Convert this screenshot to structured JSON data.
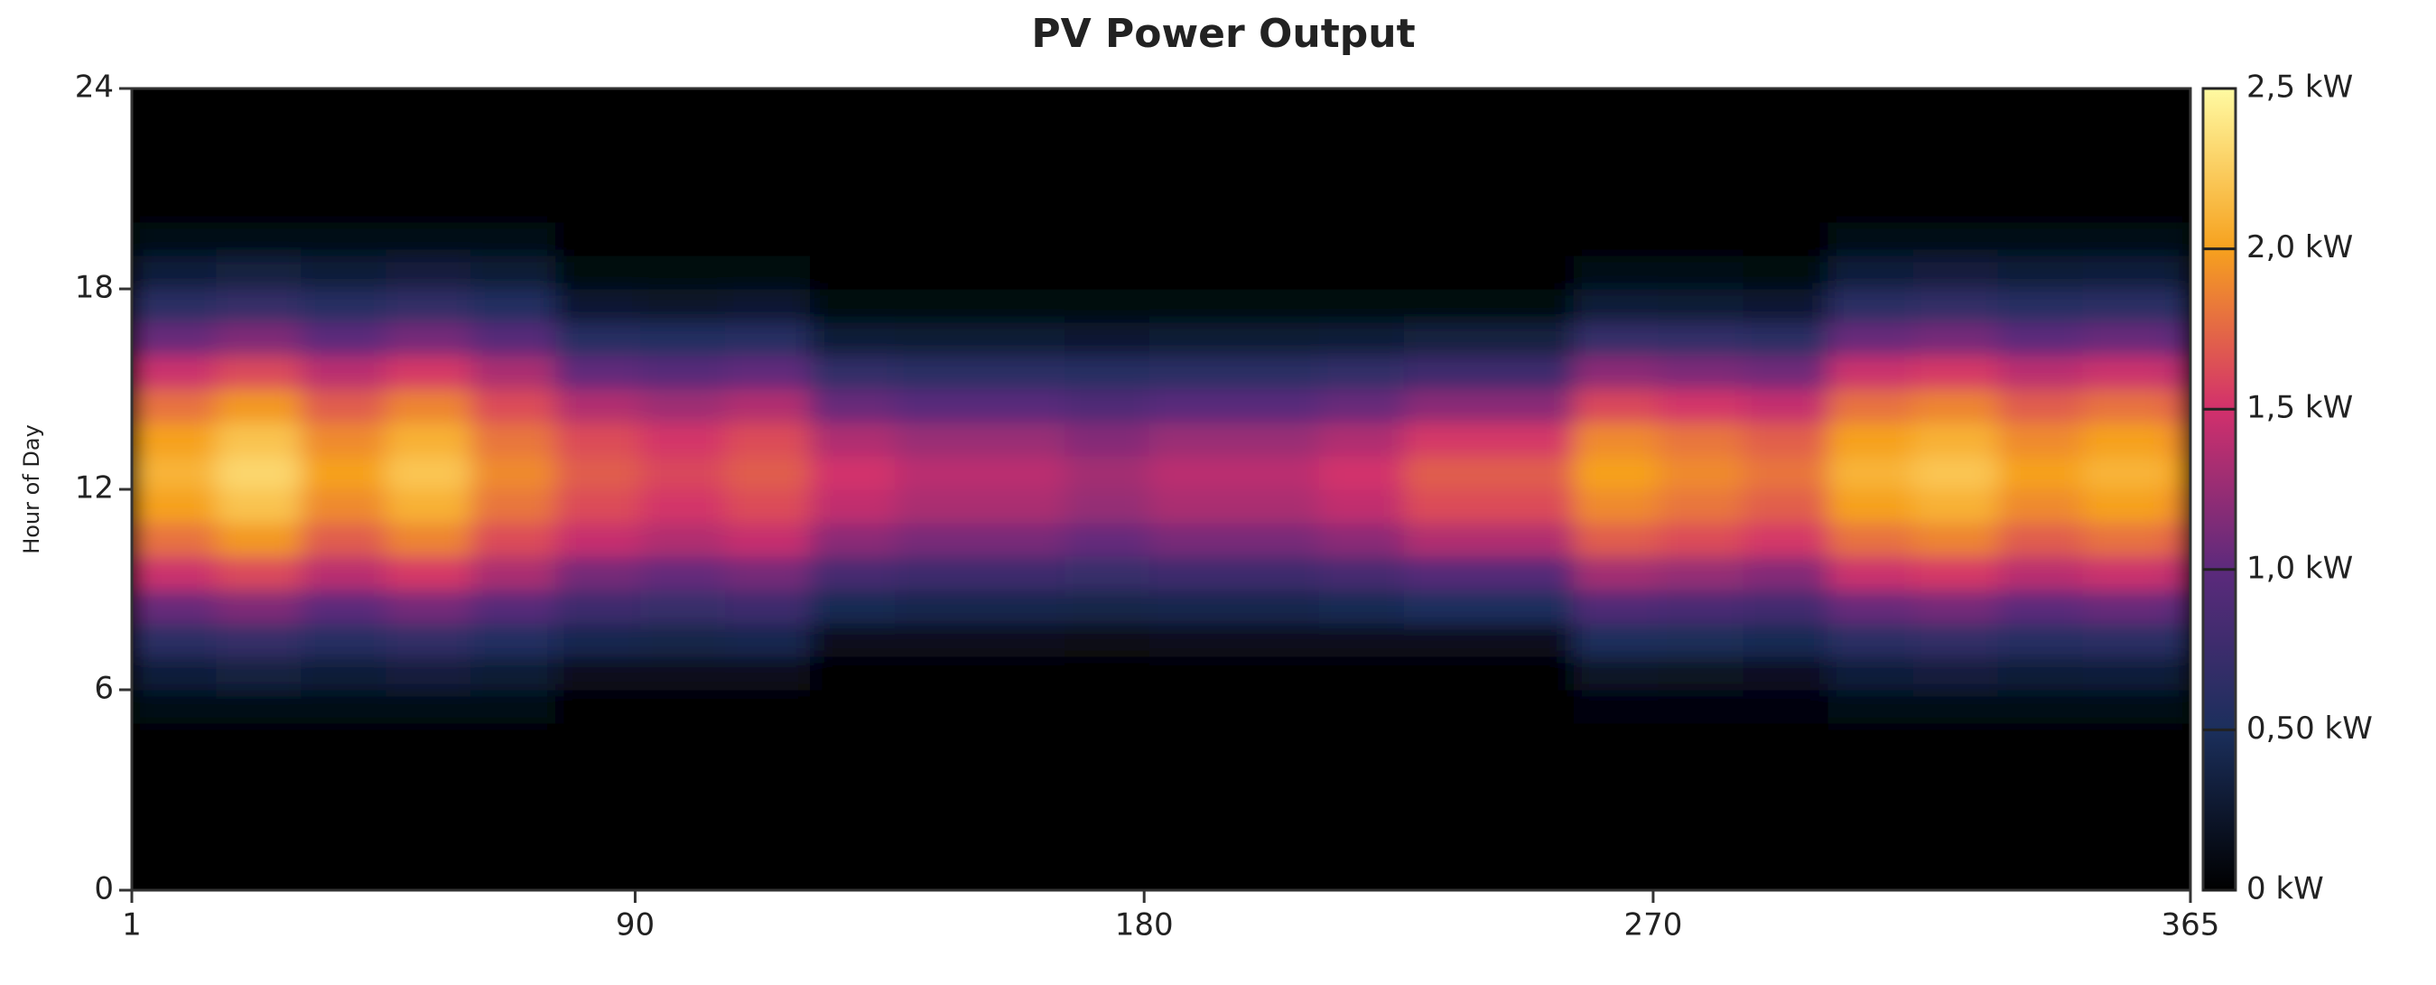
{
  "chart_data": {
    "type": "heatmap",
    "title": "PV Power Output",
    "y_label": "Hour of Day",
    "x": [
      1,
      16,
      31,
      46,
      61,
      76,
      91,
      106,
      121,
      136,
      151,
      166,
      181,
      196,
      211,
      226,
      241,
      256,
      271,
      286,
      301,
      316,
      331,
      346,
      361
    ],
    "y": [
      0,
      1,
      2,
      3,
      4,
      5,
      6,
      7,
      8,
      9,
      10,
      11,
      12,
      13,
      14,
      15,
      16,
      17,
      18,
      19,
      20,
      21,
      22,
      23
    ],
    "values": [
      [
        0,
        0,
        0,
        0,
        0,
        0.11,
        0.32,
        0.63,
        1.05,
        1.47,
        1.79,
        2.0,
        2.1,
        2.0,
        1.79,
        1.47,
        1.05,
        0.63,
        0.32,
        0.11,
        0,
        0,
        0,
        0
      ],
      [
        0,
        0,
        0,
        0,
        0,
        0.12,
        0.35,
        0.69,
        1.15,
        1.61,
        1.96,
        2.19,
        2.3,
        2.19,
        1.96,
        1.61,
        1.15,
        0.69,
        0.35,
        0.12,
        0,
        0,
        0,
        0
      ],
      [
        0,
        0,
        0,
        0,
        0,
        0.1,
        0.3,
        0.6,
        1.0,
        1.4,
        1.7,
        1.9,
        2.0,
        1.9,
        1.7,
        1.4,
        1.0,
        0.6,
        0.3,
        0.1,
        0,
        0,
        0,
        0
      ],
      [
        0,
        0,
        0,
        0,
        0,
        0.11,
        0.33,
        0.66,
        1.1,
        1.54,
        1.87,
        2.09,
        2.2,
        2.09,
        1.87,
        1.54,
        1.1,
        0.66,
        0.33,
        0.11,
        0,
        0,
        0,
        0
      ],
      [
        0,
        0,
        0,
        0,
        0,
        0.1,
        0.29,
        0.57,
        0.95,
        1.33,
        1.62,
        1.81,
        1.9,
        1.81,
        1.62,
        1.33,
        0.95,
        0.57,
        0.29,
        0.1,
        0,
        0,
        0,
        0
      ],
      [
        0,
        0,
        0,
        0,
        0,
        0.03,
        0.17,
        0.43,
        0.77,
        1.11,
        1.45,
        1.62,
        1.7,
        1.62,
        1.36,
        1.02,
        0.6,
        0.26,
        0.09,
        0,
        0,
        0,
        0,
        0
      ],
      [
        0,
        0,
        0,
        0,
        0,
        0.03,
        0.16,
        0.4,
        0.72,
        1.04,
        1.36,
        1.52,
        1.6,
        1.52,
        1.28,
        0.96,
        0.56,
        0.24,
        0.08,
        0,
        0,
        0,
        0,
        0
      ],
      [
        0,
        0,
        0,
        0,
        0,
        0.03,
        0.17,
        0.43,
        0.77,
        1.11,
        1.45,
        1.62,
        1.7,
        1.62,
        1.36,
        1.02,
        0.6,
        0.26,
        0.09,
        0,
        0,
        0,
        0,
        0
      ],
      [
        0,
        0,
        0,
        0,
        0,
        0,
        0.03,
        0.15,
        0.45,
        0.83,
        1.2,
        1.43,
        1.5,
        1.35,
        1.05,
        0.68,
        0.3,
        0.08,
        0,
        0,
        0,
        0,
        0,
        0
      ],
      [
        0,
        0,
        0,
        0,
        0,
        0,
        0.03,
        0.14,
        0.42,
        0.77,
        1.12,
        1.33,
        1.4,
        1.26,
        0.98,
        0.63,
        0.28,
        0.07,
        0,
        0,
        0,
        0,
        0,
        0
      ],
      [
        0,
        0,
        0,
        0,
        0,
        0,
        0.03,
        0.14,
        0.42,
        0.77,
        1.12,
        1.33,
        1.4,
        1.26,
        0.98,
        0.63,
        0.28,
        0.07,
        0,
        0,
        0,
        0,
        0,
        0
      ],
      [
        0,
        0,
        0,
        0,
        0,
        0,
        0.03,
        0.13,
        0.39,
        0.72,
        1.04,
        1.24,
        1.3,
        1.17,
        0.91,
        0.59,
        0.26,
        0.07,
        0,
        0,
        0,
        0,
        0,
        0
      ],
      [
        0,
        0,
        0,
        0,
        0,
        0,
        0.03,
        0.14,
        0.42,
        0.77,
        1.12,
        1.33,
        1.4,
        1.26,
        0.98,
        0.63,
        0.28,
        0.07,
        0,
        0,
        0,
        0,
        0,
        0
      ],
      [
        0,
        0,
        0,
        0,
        0,
        0,
        0.03,
        0.14,
        0.42,
        0.77,
        1.12,
        1.33,
        1.4,
        1.26,
        0.98,
        0.63,
        0.28,
        0.07,
        0,
        0,
        0,
        0,
        0,
        0
      ],
      [
        0,
        0,
        0,
        0,
        0,
        0,
        0.03,
        0.15,
        0.45,
        0.83,
        1.2,
        1.43,
        1.5,
        1.35,
        1.05,
        0.68,
        0.3,
        0.08,
        0,
        0,
        0,
        0,
        0,
        0
      ],
      [
        0,
        0,
        0,
        0,
        0,
        0,
        0.03,
        0.17,
        0.51,
        0.94,
        1.36,
        1.62,
        1.7,
        1.53,
        1.19,
        0.77,
        0.34,
        0.09,
        0,
        0,
        0,
        0,
        0,
        0
      ],
      [
        0,
        0,
        0,
        0,
        0,
        0,
        0.03,
        0.17,
        0.51,
        0.94,
        1.36,
        1.62,
        1.7,
        1.53,
        1.19,
        0.77,
        0.34,
        0.09,
        0,
        0,
        0,
        0,
        0,
        0
      ],
      [
        0,
        0,
        0,
        0,
        0,
        0.04,
        0.2,
        0.5,
        0.9,
        1.3,
        1.7,
        1.9,
        2.0,
        1.9,
        1.6,
        1.2,
        0.7,
        0.3,
        0.1,
        0,
        0,
        0,
        0,
        0
      ],
      [
        0,
        0,
        0,
        0,
        0,
        0.04,
        0.19,
        0.48,
        0.86,
        1.24,
        1.62,
        1.81,
        1.9,
        1.81,
        1.52,
        1.14,
        0.67,
        0.29,
        0.1,
        0,
        0,
        0,
        0,
        0
      ],
      [
        0,
        0,
        0,
        0,
        0,
        0.04,
        0.18,
        0.45,
        0.81,
        1.17,
        1.53,
        1.71,
        1.8,
        1.71,
        1.44,
        1.08,
        0.63,
        0.27,
        0.09,
        0,
        0,
        0,
        0,
        0
      ],
      [
        0,
        0,
        0,
        0,
        0,
        0.11,
        0.32,
        0.63,
        1.05,
        1.47,
        1.79,
        2.0,
        2.1,
        2.0,
        1.79,
        1.47,
        1.05,
        0.63,
        0.32,
        0.11,
        0,
        0,
        0,
        0
      ],
      [
        0,
        0,
        0,
        0,
        0,
        0.11,
        0.33,
        0.66,
        1.1,
        1.54,
        1.87,
        2.09,
        2.2,
        2.09,
        1.87,
        1.54,
        1.1,
        0.66,
        0.33,
        0.11,
        0,
        0,
        0,
        0
      ],
      [
        0,
        0,
        0,
        0,
        0,
        0.1,
        0.3,
        0.6,
        1.0,
        1.4,
        1.7,
        1.9,
        2.0,
        1.9,
        1.7,
        1.4,
        1.0,
        0.6,
        0.3,
        0.1,
        0,
        0,
        0,
        0
      ],
      [
        0,
        0,
        0,
        0,
        0,
        0.11,
        0.32,
        0.63,
        1.05,
        1.47,
        1.79,
        2.0,
        2.1,
        2.0,
        1.79,
        1.47,
        1.05,
        0.63,
        0.32,
        0.11,
        0,
        0,
        0,
        0
      ],
      [
        0,
        0,
        0,
        0,
        0,
        0.1,
        0.3,
        0.6,
        1.0,
        1.4,
        1.7,
        1.9,
        2.0,
        1.9,
        1.7,
        1.4,
        1.0,
        0.6,
        0.3,
        0.1,
        0,
        0,
        0,
        0
      ]
    ],
    "xlim": [
      1,
      365
    ],
    "xticks": [
      1,
      90,
      180,
      270,
      365
    ],
    "ylim": [
      0,
      24
    ],
    "yticks": [
      0,
      6,
      12,
      18,
      24
    ],
    "zlim": [
      0,
      2.5
    ],
    "colors": [
      "#000000",
      "#1b2f5c",
      "#5c2a7c",
      "#d2306c",
      "#f6a11e",
      "#fffaa2"
    ],
    "colorbar_ticks": [
      {
        "value": 0,
        "label": "0 kW"
      },
      {
        "value": 0.5,
        "label": "0,50 kW"
      },
      {
        "value": 1.0,
        "label": "1,0 kW"
      },
      {
        "value": 1.5,
        "label": "1,5 kW"
      },
      {
        "value": 2.0,
        "label": "2,0 kW"
      },
      {
        "value": 2.5,
        "label": "2,5 kW"
      }
    ]
  }
}
